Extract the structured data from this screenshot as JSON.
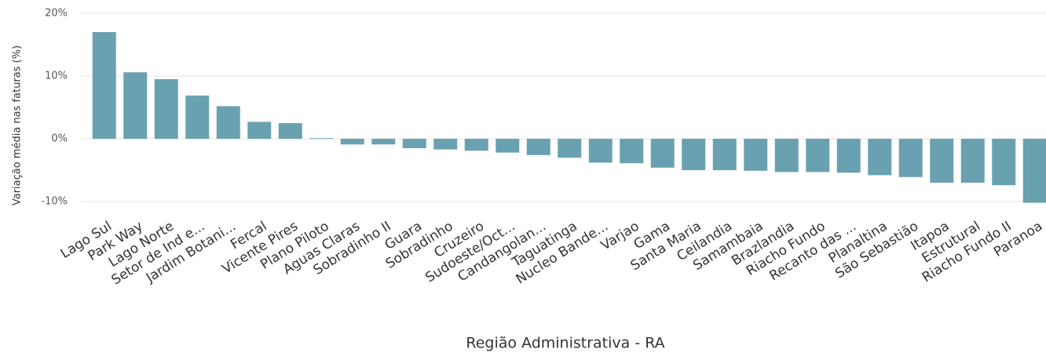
{
  "chart_data": {
    "type": "bar",
    "x_label": "Região Administrativa - RA",
    "y_label": "Variação média nas faturas (%)",
    "categories": [
      "Lago Sul",
      "Park Way",
      "Lago Norte",
      "Setor de Ind e...",
      "Jardim Botani...",
      "Fercal",
      "Vicente Pires",
      "Plano Piloto",
      "Aguas Claras",
      "Sobradinho II",
      "Guara",
      "Sobradinho",
      "Cruzeiro",
      "Sudoeste/Oct...",
      "Candangolan...",
      "Taguatinga",
      "Nucleo Bande...",
      "Varjao",
      "Gama",
      "Santa Maria",
      "Ceilandia",
      "Samambaia",
      "Brazlandia",
      "Riacho Fundo",
      "Recanto das ...",
      "Planaltina",
      "São Sebastião",
      "Itapoa",
      "Estrutural",
      "Riacho Fundo II",
      "Paranoa"
    ],
    "values": [
      17.0,
      10.6,
      9.5,
      6.9,
      5.2,
      2.7,
      2.5,
      0.1,
      -0.9,
      -0.9,
      -1.5,
      -1.7,
      -1.9,
      -2.2,
      -2.6,
      -3.0,
      -3.8,
      -3.9,
      -4.6,
      -5.0,
      -5.0,
      -5.1,
      -5.3,
      -5.3,
      -5.4,
      -5.8,
      -6.1,
      -7.0,
      -7.0,
      -7.4,
      -10.2
    ],
    "color": "#6aa1b1",
    "ylim": [
      -11,
      20
    ],
    "yticks": [
      {
        "value": -10,
        "label": "-10%"
      },
      {
        "value": 0,
        "label": "0%"
      },
      {
        "value": 10,
        "label": "10%"
      },
      {
        "value": 20,
        "label": "20%"
      }
    ],
    "grid": true
  }
}
